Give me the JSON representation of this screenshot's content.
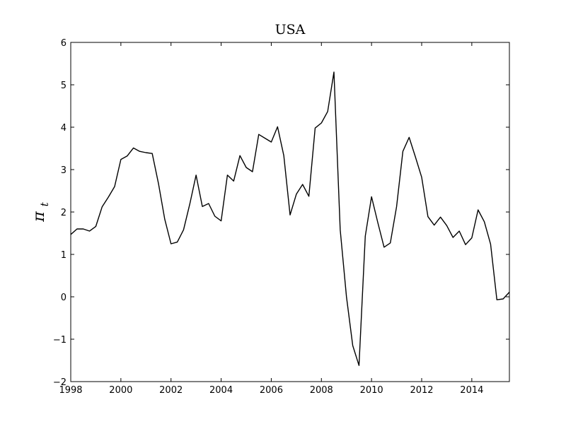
{
  "chart_data": {
    "type": "line",
    "title": "USA",
    "xlabel": "",
    "ylabel": "πt",
    "ylabel_parts": {
      "base": "π",
      "subscript": "t"
    },
    "xlim": [
      1998,
      2015.5
    ],
    "ylim": [
      -2,
      6
    ],
    "xticks": [
      1998,
      2000,
      2002,
      2004,
      2006,
      2008,
      2010,
      2012,
      2014
    ],
    "xtick_labels": [
      "1998",
      "2000",
      "2002",
      "2004",
      "2006",
      "2008",
      "2010",
      "2012",
      "2014"
    ],
    "yticks": [
      -2,
      -1,
      0,
      1,
      2,
      3,
      4,
      5,
      6
    ],
    "ytick_labels": [
      "−2",
      "−1",
      "0",
      "1",
      "2",
      "3",
      "4",
      "5",
      "6"
    ],
    "grid": false,
    "line_color": "#000000",
    "series": [
      {
        "x": [
          1998.0,
          1998.25,
          1998.5,
          1998.75,
          1999.0,
          1999.25,
          1999.5,
          1999.75,
          2000.0,
          2000.25,
          2000.5,
          2000.75,
          2001.0,
          2001.25,
          2001.5,
          2001.75,
          2002.0,
          2002.25,
          2002.5,
          2002.75,
          2003.0,
          2003.25,
          2003.5,
          2003.75,
          2004.0,
          2004.25,
          2004.5,
          2004.75,
          2005.0,
          2005.25,
          2005.5,
          2005.75,
          2006.0,
          2006.25,
          2006.5,
          2006.75,
          2007.0,
          2007.25,
          2007.5,
          2007.75,
          2008.0,
          2008.25,
          2008.5,
          2008.75,
          2009.0,
          2009.25,
          2009.5,
          2009.75,
          2010.0,
          2010.25,
          2010.5,
          2010.75,
          2011.0,
          2011.25,
          2011.5,
          2011.75,
          2012.0,
          2012.25,
          2012.5,
          2012.75,
          2013.0,
          2013.25,
          2013.5,
          2013.75,
          2014.0,
          2014.25,
          2014.5,
          2014.75,
          2015.0,
          2015.25,
          2015.5
        ],
        "y": [
          1.47,
          1.6,
          1.6,
          1.55,
          1.66,
          2.12,
          2.35,
          2.6,
          3.24,
          3.32,
          3.51,
          3.43,
          3.4,
          3.38,
          2.67,
          1.83,
          1.25,
          1.29,
          1.58,
          2.19,
          2.87,
          2.13,
          2.2,
          1.9,
          1.79,
          2.87,
          2.73,
          3.33,
          3.05,
          2.95,
          3.83,
          3.74,
          3.65,
          4.01,
          3.33,
          1.93,
          2.42,
          2.65,
          2.37,
          3.98,
          4.1,
          4.37,
          5.3,
          1.58,
          0.0,
          -1.15,
          -1.62,
          1.43,
          2.36,
          1.75,
          1.17,
          1.27,
          2.13,
          3.43,
          3.76,
          3.3,
          2.82,
          1.89,
          1.69,
          1.88,
          1.68,
          1.4,
          1.55,
          1.23,
          1.39,
          2.05,
          1.77,
          1.24,
          -0.07,
          -0.05,
          0.11
        ]
      }
    ]
  }
}
